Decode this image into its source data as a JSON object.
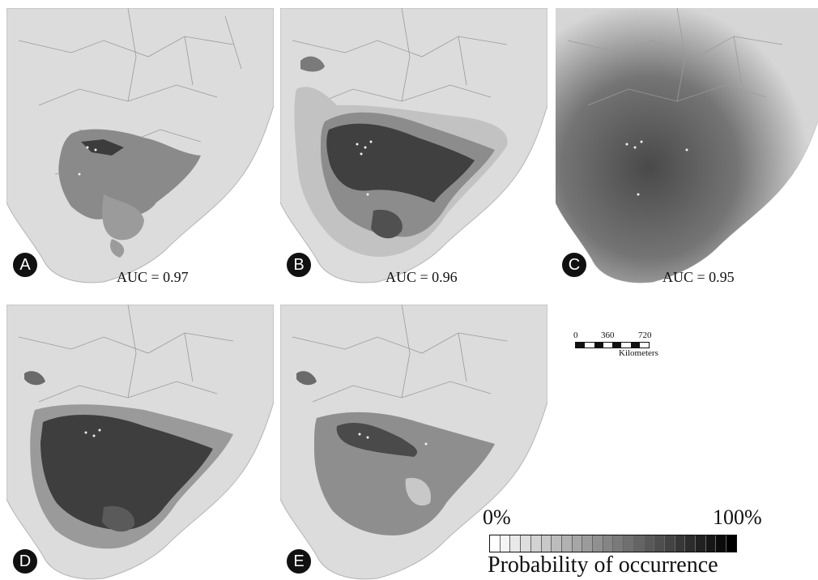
{
  "panels": [
    {
      "letter": "A",
      "auc": "AUC = 0.97"
    },
    {
      "letter": "B",
      "auc": "AUC = 0.96"
    },
    {
      "letter": "C",
      "auc": "AUC = 0.95"
    },
    {
      "letter": "D",
      "auc": ""
    },
    {
      "letter": "E",
      "auc": ""
    }
  ],
  "scale_bar": {
    "ticks": [
      "0",
      "360",
      "720"
    ],
    "unit": "Kilometers"
  },
  "legend": {
    "min_label": "0%",
    "max_label": "100%",
    "title": "Probability of occurrence",
    "steps": 24,
    "color_start": "#ffffff",
    "color_end": "#000000"
  },
  "colors": {
    "land": "#dcdcdc",
    "sea": "#ffffff",
    "border_line": "#9a9a9a",
    "low": "#a9a9a9",
    "mid": "#7a7a7a",
    "high": "#3a3a3a",
    "points": "#f2f2f2"
  }
}
